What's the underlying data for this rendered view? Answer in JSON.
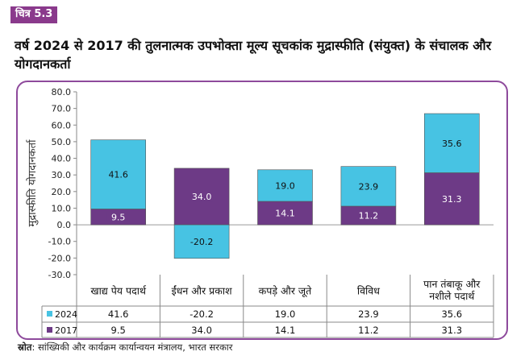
{
  "figure_label": "चित्र 5.3",
  "title": "वर्ष 2024 से 2017 की तुलनात्मक उपभोक्ता मूल्य सूचकांक मुद्रास्फीति (संयुक्त) के संचालक और योगदानकर्ता",
  "source": {
    "label": "स्रोत",
    "text": ": सांख्यिकी और कार्यक्रम कार्यान्वयन मंत्रालय, भारत सरकार"
  },
  "colors": {
    "series_2024": "#47c3e3",
    "series_2017": "#6d3a86",
    "border": "#8e4a9c",
    "label_box": "#6d3a86"
  },
  "chart_data": {
    "type": "bar",
    "stacked": true,
    "ylabel": "मुद्रास्फीति योगदानकर्ता",
    "ylim": [
      -30,
      80
    ],
    "yticks": [
      "80.0",
      "70.0",
      "60.0",
      "50.0",
      "40.0",
      "30.0",
      "20.0",
      "10.0",
      "0.0",
      "-10.0",
      "-20.0",
      "-30.0"
    ],
    "ytick_values": [
      80,
      70,
      60,
      50,
      40,
      30,
      20,
      10,
      0,
      -10,
      -20,
      -30
    ],
    "categories": [
      "खाद्य पेय पदार्थ",
      "ईंधन और प्रकाश",
      "कपड़े और जूते",
      "विविध",
      "पान तंबाकू और नशीले पदार्थ"
    ],
    "series": [
      {
        "name": "2024",
        "values": [
          41.6,
          -20.2,
          19.0,
          23.9,
          35.6
        ],
        "labels": [
          "41.6",
          "-20.2",
          "19.0",
          "23.9",
          "35.6"
        ]
      },
      {
        "name": "2017",
        "values": [
          9.5,
          34.0,
          14.1,
          11.2,
          31.3
        ],
        "labels": [
          "9.5",
          "34.0",
          "14.1",
          "11.2",
          "31.3"
        ]
      }
    ],
    "grid": false,
    "legend": "data-table"
  }
}
